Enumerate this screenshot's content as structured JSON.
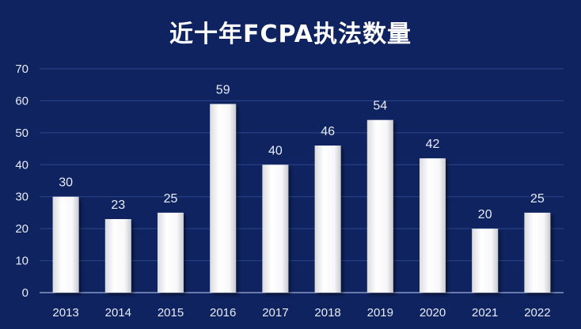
{
  "chart_data": {
    "type": "bar",
    "title": "近十年FCPA执法数量",
    "categories": [
      "2013",
      "2014",
      "2015",
      "2016",
      "2017",
      "2018",
      "2019",
      "2020",
      "2021",
      "2022"
    ],
    "values": [
      30,
      23,
      25,
      59,
      40,
      46,
      54,
      42,
      20,
      25
    ],
    "ylim": [
      0,
      70
    ],
    "yticks": [
      0,
      10,
      20,
      30,
      40,
      50,
      60,
      70
    ],
    "grid": true,
    "legend": "none",
    "colors": {
      "background": "#0f2360",
      "bar": "#ffffff",
      "grid": "#2c4689",
      "axis": "#9fb0d6",
      "text": "#e8ecf6"
    }
  }
}
